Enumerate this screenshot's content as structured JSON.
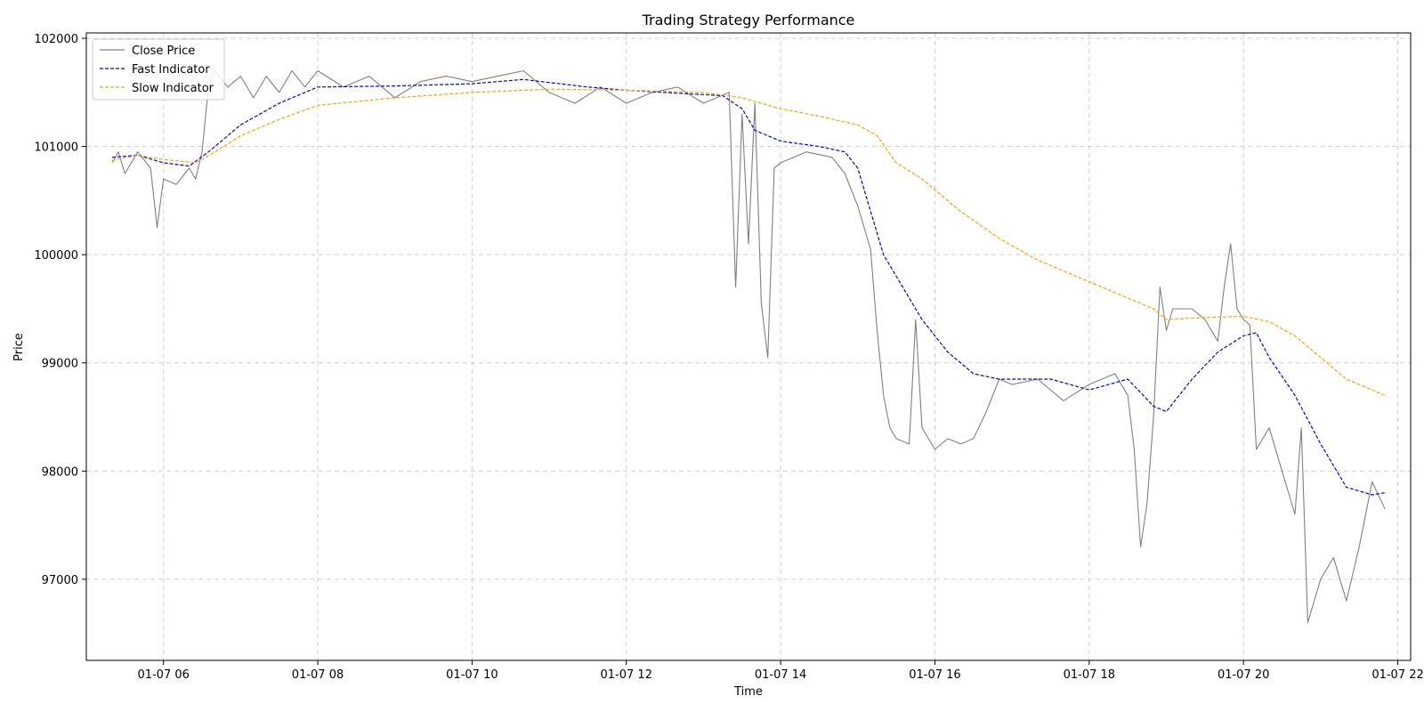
{
  "chart_data": {
    "type": "line",
    "title": "Trading Strategy Performance",
    "xlabel": "Time",
    "ylabel": "Price",
    "x_axis": {
      "kind": "datetime",
      "range": [
        "01-07 05:00",
        "01-07 22:10"
      ],
      "tick_labels": [
        "01-07 06",
        "01-07 08",
        "01-07 10",
        "01-07 12",
        "01-07 14",
        "01-07 16",
        "01-07 18",
        "01-07 20",
        "01-07 22"
      ]
    },
    "y_axis": {
      "range": [
        96250,
        102050
      ],
      "ticks": [
        97000,
        98000,
        99000,
        100000,
        101000,
        102000
      ],
      "tick_labels": [
        "97000",
        "98000",
        "99000",
        "100000",
        "101000",
        "102000"
      ]
    },
    "grid": true,
    "legend_position": "top-left",
    "series": [
      {
        "name": "Close Price",
        "color": "#808080",
        "style": "solid",
        "points": [
          [
            "01-07 05:20",
            100850
          ],
          [
            "01-07 05:25",
            100950
          ],
          [
            "01-07 05:30",
            100750
          ],
          [
            "01-07 05:40",
            100950
          ],
          [
            "01-07 05:50",
            100800
          ],
          [
            "01-07 05:55",
            100250
          ],
          [
            "01-07 06:00",
            100700
          ],
          [
            "01-07 06:10",
            100650
          ],
          [
            "01-07 06:20",
            100800
          ],
          [
            "01-07 06:25",
            100700
          ],
          [
            "01-07 06:30",
            100950
          ],
          [
            "01-07 06:35",
            101550
          ],
          [
            "01-07 06:40",
            101700
          ],
          [
            "01-07 06:50",
            101550
          ],
          [
            "01-07 07:00",
            101650
          ],
          [
            "01-07 07:10",
            101450
          ],
          [
            "01-07 07:20",
            101650
          ],
          [
            "01-07 07:30",
            101500
          ],
          [
            "01-07 07:40",
            101700
          ],
          [
            "01-07 07:50",
            101550
          ],
          [
            "01-07 08:00",
            101700
          ],
          [
            "01-07 08:20",
            101550
          ],
          [
            "01-07 08:40",
            101650
          ],
          [
            "01-07 09:00",
            101450
          ],
          [
            "01-07 09:20",
            101600
          ],
          [
            "01-07 09:40",
            101650
          ],
          [
            "01-07 10:00",
            101600
          ],
          [
            "01-07 10:20",
            101650
          ],
          [
            "01-07 10:40",
            101700
          ],
          [
            "01-07 11:00",
            101500
          ],
          [
            "01-07 11:20",
            101400
          ],
          [
            "01-07 11:40",
            101550
          ],
          [
            "01-07 12:00",
            101400
          ],
          [
            "01-07 12:20",
            101500
          ],
          [
            "01-07 12:40",
            101550
          ],
          [
            "01-07 13:00",
            101400
          ],
          [
            "01-07 13:20",
            101500
          ],
          [
            "01-07 13:25",
            99700
          ],
          [
            "01-07 13:30",
            101300
          ],
          [
            "01-07 13:35",
            100100
          ],
          [
            "01-07 13:40",
            101400
          ],
          [
            "01-07 13:45",
            99550
          ],
          [
            "01-07 13:50",
            99050
          ],
          [
            "01-07 13:55",
            100800
          ],
          [
            "01-07 14:00",
            100850
          ],
          [
            "01-07 14:20",
            100950
          ],
          [
            "01-07 14:40",
            100900
          ],
          [
            "01-07 14:50",
            100750
          ],
          [
            "01-07 15:00",
            100450
          ],
          [
            "01-07 15:10",
            100050
          ],
          [
            "01-07 15:15",
            99300
          ],
          [
            "01-07 15:20",
            98700
          ],
          [
            "01-07 15:25",
            98400
          ],
          [
            "01-07 15:30",
            98300
          ],
          [
            "01-07 15:40",
            98250
          ],
          [
            "01-07 15:45",
            99400
          ],
          [
            "01-07 15:50",
            98400
          ],
          [
            "01-07 16:00",
            98200
          ],
          [
            "01-07 16:10",
            98300
          ],
          [
            "01-07 16:20",
            98250
          ],
          [
            "01-07 16:30",
            98300
          ],
          [
            "01-07 16:40",
            98550
          ],
          [
            "01-07 16:50",
            98850
          ],
          [
            "01-07 17:00",
            98800
          ],
          [
            "01-07 17:20",
            98850
          ],
          [
            "01-07 17:40",
            98650
          ],
          [
            "01-07 18:00",
            98800
          ],
          [
            "01-07 18:20",
            98900
          ],
          [
            "01-07 18:30",
            98700
          ],
          [
            "01-07 18:35",
            98200
          ],
          [
            "01-07 18:40",
            97300
          ],
          [
            "01-07 18:45",
            97700
          ],
          [
            "01-07 18:50",
            98500
          ],
          [
            "01-07 18:55",
            99700
          ],
          [
            "01-07 19:00",
            99300
          ],
          [
            "01-07 19:05",
            99500
          ],
          [
            "01-07 19:20",
            99500
          ],
          [
            "01-07 19:30",
            99400
          ],
          [
            "01-07 19:40",
            99200
          ],
          [
            "01-07 19:45",
            99700
          ],
          [
            "01-07 19:50",
            100100
          ],
          [
            "01-07 19:55",
            99500
          ],
          [
            "01-07 20:00",
            99400
          ],
          [
            "01-07 20:05",
            99350
          ],
          [
            "01-07 20:10",
            98200
          ],
          [
            "01-07 20:20",
            98400
          ],
          [
            "01-07 20:30",
            98000
          ],
          [
            "01-07 20:40",
            97600
          ],
          [
            "01-07 20:45",
            98400
          ],
          [
            "01-07 20:50",
            96600
          ],
          [
            "01-07 21:00",
            97000
          ],
          [
            "01-07 21:10",
            97200
          ],
          [
            "01-07 21:20",
            96800
          ],
          [
            "01-07 21:30",
            97300
          ],
          [
            "01-07 21:40",
            97900
          ],
          [
            "01-07 21:50",
            97650
          ]
        ]
      },
      {
        "name": "Fast Indicator",
        "color": "#0000ff",
        "style": "dashed",
        "points": [
          [
            "01-07 05:20",
            100900
          ],
          [
            "01-07 05:40",
            100920
          ],
          [
            "01-07 06:00",
            100850
          ],
          [
            "01-07 06:20",
            100820
          ],
          [
            "01-07 06:35",
            100950
          ],
          [
            "01-07 07:00",
            101200
          ],
          [
            "01-07 07:30",
            101400
          ],
          [
            "01-07 08:00",
            101550
          ],
          [
            "01-07 09:00",
            101560
          ],
          [
            "01-07 10:00",
            101580
          ],
          [
            "01-07 10:40",
            101620
          ],
          [
            "01-07 11:30",
            101550
          ],
          [
            "01-07 12:00",
            101520
          ],
          [
            "01-07 12:30",
            101500
          ],
          [
            "01-07 13:00",
            101480
          ],
          [
            "01-07 13:15",
            101470
          ],
          [
            "01-07 13:30",
            101350
          ],
          [
            "01-07 13:40",
            101150
          ],
          [
            "01-07 14:00",
            101050
          ],
          [
            "01-07 14:30",
            101000
          ],
          [
            "01-07 14:50",
            100950
          ],
          [
            "01-07 15:00",
            100800
          ],
          [
            "01-07 15:10",
            100400
          ],
          [
            "01-07 15:20",
            100000
          ],
          [
            "01-07 15:30",
            99800
          ],
          [
            "01-07 15:50",
            99400
          ],
          [
            "01-07 16:10",
            99100
          ],
          [
            "01-07 16:30",
            98900
          ],
          [
            "01-07 16:50",
            98850
          ],
          [
            "01-07 17:30",
            98850
          ],
          [
            "01-07 18:00",
            98750
          ],
          [
            "01-07 18:30",
            98850
          ],
          [
            "01-07 18:50",
            98600
          ],
          [
            "01-07 19:00",
            98550
          ],
          [
            "01-07 19:20",
            98850
          ],
          [
            "01-07 19:40",
            99100
          ],
          [
            "01-07 20:00",
            99250
          ],
          [
            "01-07 20:10",
            99280
          ],
          [
            "01-07 20:20",
            99050
          ],
          [
            "01-07 20:40",
            98700
          ],
          [
            "01-07 21:00",
            98250
          ],
          [
            "01-07 21:20",
            97850
          ],
          [
            "01-07 21:40",
            97780
          ],
          [
            "01-07 21:50",
            97800
          ]
        ]
      },
      {
        "name": "Slow Indicator",
        "color": "#ffa500",
        "style": "dashed",
        "points": [
          [
            "01-07 05:20",
            100870
          ],
          [
            "01-07 05:40",
            100920
          ],
          [
            "01-07 06:00",
            100880
          ],
          [
            "01-07 06:25",
            100850
          ],
          [
            "01-07 06:40",
            100950
          ],
          [
            "01-07 07:00",
            101100
          ],
          [
            "01-07 07:30",
            101250
          ],
          [
            "01-07 08:00",
            101380
          ],
          [
            "01-07 09:00",
            101450
          ],
          [
            "01-07 10:00",
            101500
          ],
          [
            "01-07 11:00",
            101530
          ],
          [
            "01-07 12:00",
            101520
          ],
          [
            "01-07 13:00",
            101500
          ],
          [
            "01-07 13:30",
            101450
          ],
          [
            "01-07 14:00",
            101350
          ],
          [
            "01-07 14:30",
            101280
          ],
          [
            "01-07 15:00",
            101200
          ],
          [
            "01-07 15:15",
            101100
          ],
          [
            "01-07 15:30",
            100850
          ],
          [
            "01-07 15:50",
            100700
          ],
          [
            "01-07 16:20",
            100400
          ],
          [
            "01-07 16:50",
            100150
          ],
          [
            "01-07 17:20",
            99950
          ],
          [
            "01-07 17:50",
            99800
          ],
          [
            "01-07 18:20",
            99650
          ],
          [
            "01-07 18:50",
            99500
          ],
          [
            "01-07 19:00",
            99400
          ],
          [
            "01-07 19:30",
            99420
          ],
          [
            "01-07 20:00",
            99430
          ],
          [
            "01-07 20:20",
            99380
          ],
          [
            "01-07 20:40",
            99250
          ],
          [
            "01-07 21:00",
            99050
          ],
          [
            "01-07 21:20",
            98850
          ],
          [
            "01-07 21:50",
            98700
          ]
        ]
      }
    ]
  }
}
